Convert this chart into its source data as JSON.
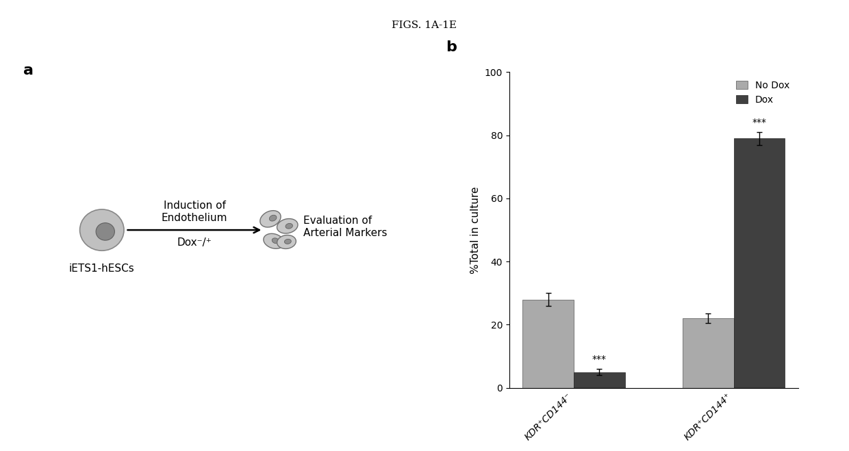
{
  "title": "FIGS. 1A-1E",
  "title_fontsize": 11,
  "panel_a_label": "a",
  "panel_b_label": "b",
  "panel_label_fontsize": 16,
  "panel_label_fontweight": "bold",
  "bar_categories": [
    "KDR⁺CD144⁻",
    "KDR⁺CD144⁺"
  ],
  "no_dox_values": [
    28,
    22
  ],
  "dox_values": [
    5,
    79
  ],
  "no_dox_errors": [
    2,
    1.5
  ],
  "dox_errors": [
    1,
    2
  ],
  "no_dox_color": "#aaaaaa",
  "dox_color": "#404040",
  "ylabel": "%Total in culture",
  "ylim": [
    0,
    100
  ],
  "yticks": [
    0,
    20,
    40,
    60,
    80,
    100
  ],
  "legend_labels": [
    "No Dox",
    "Dox"
  ],
  "bar_width": 0.32,
  "background_color": "#ffffff",
  "axis_label_fontsize": 11,
  "tick_fontsize": 10,
  "legend_fontsize": 10,
  "annotation_label_above": "Induction of\nEndothelium",
  "annotation_label_below": "Dox⁻/⁺",
  "annotation_right": "Evaluation of\nArterial Markers",
  "cell_label": "iETS1-hESCs"
}
